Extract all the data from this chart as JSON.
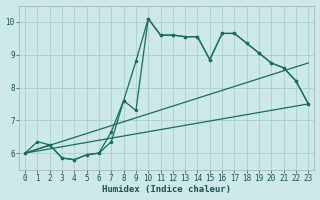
{
  "xlabel": "Humidex (Indice chaleur)",
  "background_color": "#cce8e8",
  "grid_color": "#aacece",
  "line_color": "#1a6b5a",
  "xlim": [
    -0.5,
    23.5
  ],
  "ylim": [
    5.5,
    10.5
  ],
  "yticks": [
    6,
    7,
    8,
    9,
    10
  ],
  "xticks": [
    0,
    1,
    2,
    3,
    4,
    5,
    6,
    7,
    8,
    9,
    10,
    11,
    12,
    13,
    14,
    15,
    16,
    17,
    18,
    19,
    20,
    21,
    22,
    23
  ],
  "line1_x": [
    0,
    1,
    2,
    3,
    4,
    5,
    6,
    7,
    8,
    9,
    10,
    11,
    12,
    13,
    14,
    15,
    16,
    17,
    18,
    19,
    20,
    21,
    22,
    23
  ],
  "line1_y": [
    6.0,
    6.35,
    6.25,
    5.85,
    5.8,
    5.95,
    6.0,
    6.35,
    7.6,
    8.8,
    10.1,
    9.6,
    9.6,
    9.55,
    9.55,
    8.85,
    9.65,
    9.65,
    9.35,
    9.05,
    8.75,
    8.6,
    8.2,
    7.5
  ],
  "line2_x": [
    0,
    2,
    3,
    4,
    5,
    6,
    7,
    8,
    9,
    10,
    11,
    12,
    13,
    14,
    15,
    16,
    17,
    18,
    19,
    20,
    21,
    22,
    23
  ],
  "line2_y": [
    6.0,
    6.25,
    5.85,
    5.8,
    5.95,
    6.0,
    6.65,
    7.6,
    7.3,
    10.1,
    9.6,
    9.6,
    9.55,
    9.55,
    8.85,
    9.65,
    9.65,
    9.35,
    9.05,
    8.75,
    8.6,
    8.2,
    7.5
  ],
  "line3_x": [
    0,
    23
  ],
  "line3_y": [
    6.0,
    7.5
  ],
  "line4_x": [
    0,
    23
  ],
  "line4_y": [
    6.0,
    8.75
  ],
  "marker_size": 2.5,
  "linewidth": 0.9,
  "tick_fontsize": 5.5,
  "xlabel_fontsize": 6.5
}
